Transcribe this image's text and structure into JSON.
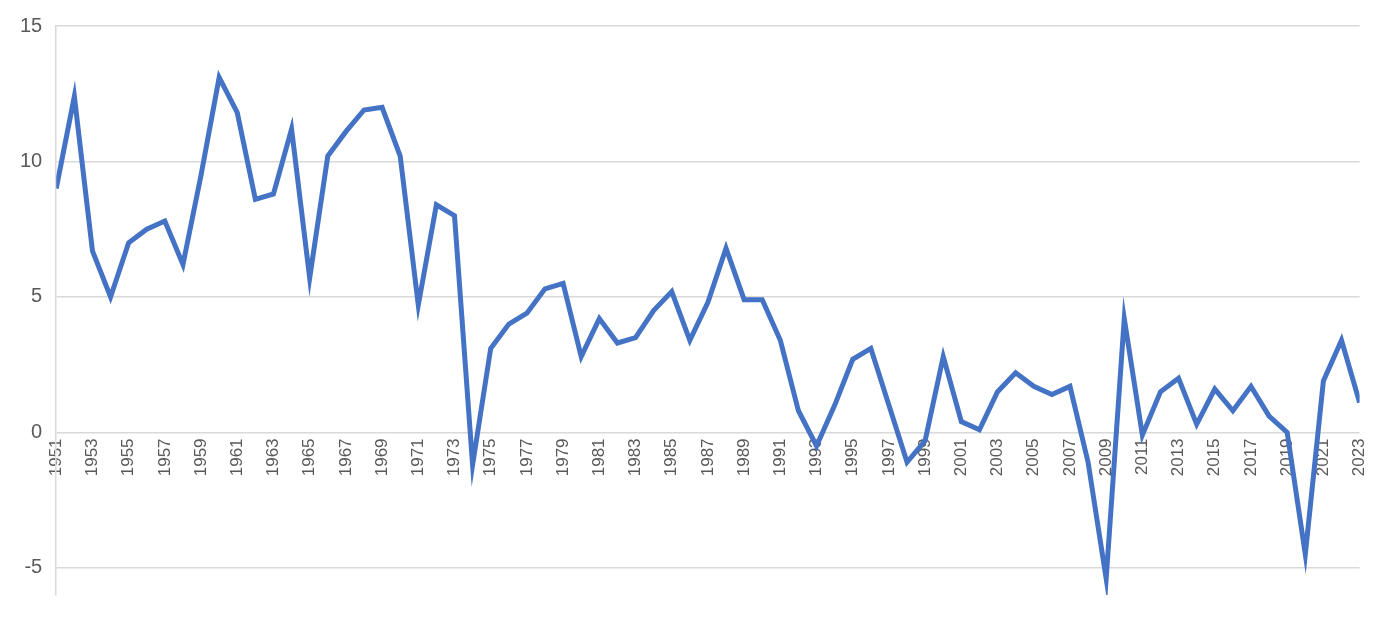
{
  "chart_data": {
    "type": "line",
    "categories": [
      "1951",
      null,
      "1953",
      null,
      "1955",
      null,
      "1957",
      null,
      "1959",
      null,
      "1961",
      null,
      "1963",
      null,
      "1965",
      null,
      "1967",
      null,
      "1969",
      null,
      "1971",
      null,
      "1973",
      null,
      "1975",
      null,
      "1977",
      null,
      "1979",
      null,
      "1981",
      null,
      "1983",
      null,
      "1985",
      null,
      "1987",
      null,
      "1989",
      null,
      "1991",
      null,
      "1993",
      null,
      "1995",
      null,
      "1997",
      null,
      "1999",
      null,
      "2001",
      null,
      "2003",
      null,
      "2005",
      null,
      "2007",
      null,
      "2009",
      null,
      "2011",
      null,
      "2013",
      null,
      "2015",
      null,
      "2017",
      null,
      "2019",
      null,
      "2021",
      null,
      "2023"
    ],
    "values": [
      9.0,
      12.4,
      6.7,
      5.0,
      7.0,
      7.5,
      7.8,
      6.2,
      9.5,
      13.1,
      11.8,
      8.6,
      8.8,
      11.2,
      5.7,
      10.2,
      11.1,
      11.9,
      12.0,
      10.2,
      4.7,
      8.4,
      8.0,
      -1.2,
      3.1,
      4.0,
      4.4,
      5.3,
      5.5,
      2.8,
      4.2,
      3.3,
      3.5,
      4.5,
      5.2,
      3.4,
      4.8,
      6.8,
      4.9,
      4.9,
      3.4,
      0.8,
      -0.5,
      1.0,
      2.7,
      3.1,
      1.0,
      -1.1,
      -0.3,
      2.8,
      0.4,
      0.1,
      1.5,
      2.2,
      1.7,
      1.4,
      1.7,
      -1.1,
      -5.4,
      4.2,
      -0.1,
      1.5,
      2.0,
      0.3,
      1.6,
      0.8,
      1.7,
      0.6,
      0.0,
      -4.5,
      1.9,
      3.4,
      1.1
    ],
    "color": "#4472c4",
    "ylim": [
      -6,
      15
    ],
    "yticks": [
      -5,
      0,
      5,
      10,
      15
    ],
    "grid": true
  }
}
